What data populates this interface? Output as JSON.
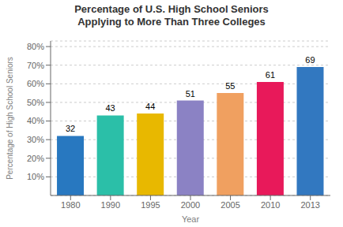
{
  "chart_data": {
    "type": "bar",
    "title": "Percentage of U.S. High School Seniors\nApplying to More Than Three Colleges",
    "xlabel": "Year",
    "ylabel": "Percentage of High School Seniors",
    "categories": [
      "1980",
      "1990",
      "1995",
      "2000",
      "2005",
      "2010",
      "2013"
    ],
    "values": [
      32,
      43,
      44,
      51,
      55,
      61,
      69
    ],
    "colors": [
      "#2878C0",
      "#2BBFA8",
      "#E8B800",
      "#8B82C4",
      "#F0A060",
      "#E8195A",
      "#3278C0"
    ],
    "ylim": [
      0,
      83
    ],
    "yticks": [
      {
        "value": 10,
        "label": "10%"
      },
      {
        "value": 20,
        "label": "20%"
      },
      {
        "value": 30,
        "label": "30%"
      },
      {
        "value": 40,
        "label": "40%"
      },
      {
        "value": 50,
        "label": "50%"
      },
      {
        "value": 60,
        "label": "60%"
      },
      {
        "value": 70,
        "label": "70%"
      },
      {
        "value": 80,
        "label": "80%"
      }
    ],
    "grid": true,
    "data_labels": true
  }
}
